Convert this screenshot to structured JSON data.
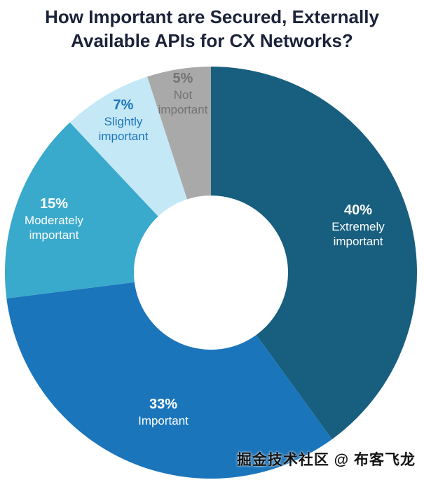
{
  "title_line1": "How Important are Secured, Externally",
  "title_line2": "Available APIs for CX Networks?",
  "watermark": "掘金技术社区 @ 布客飞龙",
  "chart_data": {
    "type": "pie",
    "subtype": "donut",
    "title": "How Important are Secured, Externally Available APIs for CX Networks?",
    "start_angle_deg": 0,
    "direction": "clockwise",
    "inner_radius_ratio": 0.37,
    "legend": "none",
    "data_labels": "percent and category on slices",
    "slices": [
      {
        "label": "Extremely important",
        "pct_text": "40%",
        "value": 40,
        "color": "#175e7f",
        "label_color": "#ffffff"
      },
      {
        "label": "Important",
        "pct_text": "33%",
        "value": 33,
        "color": "#1b75bb",
        "label_color": "#ffffff"
      },
      {
        "label": "Moderately important",
        "pct_text": "15%",
        "value": 15,
        "color": "#39a9cc",
        "label_color": "#ffffff"
      },
      {
        "label": "Slightly important",
        "pct_text": "7%",
        "value": 7,
        "color": "#c5e8f7",
        "label_color": "#1b75bb"
      },
      {
        "label": "Not important",
        "pct_text": "5%",
        "value": 5,
        "color": "#a9a9a9",
        "label_color": "#737373"
      }
    ]
  }
}
